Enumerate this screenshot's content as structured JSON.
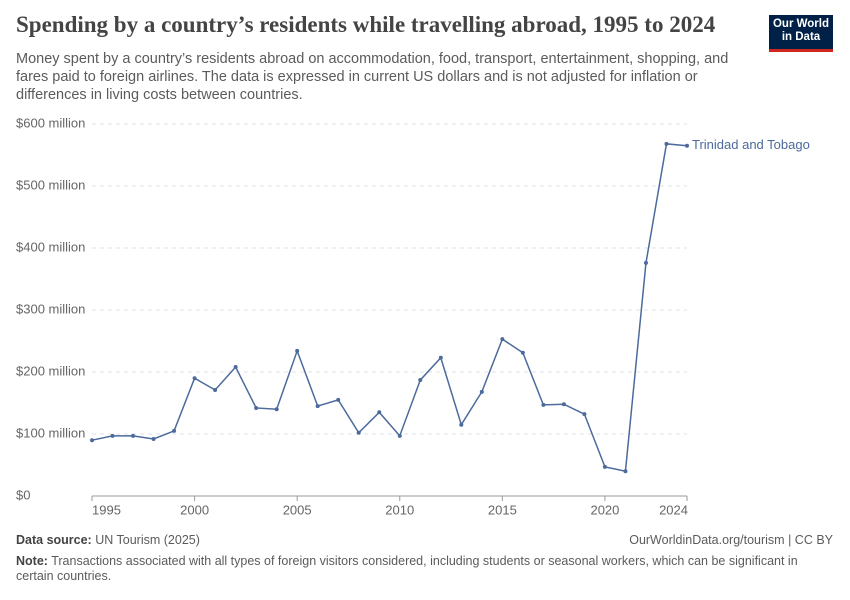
{
  "chart_data": {
    "type": "line",
    "title": "Spending by a country’s residents while travelling abroad, 1995 to 2024",
    "subtitle": "Money spent by a country’s residents abroad on accommodation, food, transport, entertainment, shopping, and fares paid to foreign airlines. The data is expressed in current US dollars and is not adjusted for inflation or differences in living costs between countries.",
    "logo": [
      "Our World",
      "in Data"
    ],
    "source_label": "Data source:",
    "source": "UN Tourism (2025)",
    "url": "OurWorldinData.org/tourism | CC BY",
    "note_label": "Note:",
    "note": "Transactions associated with all types of foreign visitors considered, including students or seasonal workers, which can be significant in certain countries.",
    "x": [
      1995,
      1996,
      1997,
      1998,
      1999,
      2000,
      2001,
      2002,
      2003,
      2004,
      2005,
      2006,
      2007,
      2008,
      2009,
      2010,
      2011,
      2012,
      2013,
      2014,
      2015,
      2016,
      2017,
      2018,
      2019,
      2020,
      2021,
      2022,
      2023,
      2024
    ],
    "series": [
      {
        "name": "Trinidad and Tobago",
        "color": "#4c6a9c",
        "values": [
          90,
          97,
          97,
          92,
          105,
          190,
          171,
          208,
          142,
          140,
          234,
          145,
          155,
          102,
          135,
          97,
          187,
          223,
          115,
          168,
          253,
          231,
          147,
          148,
          132,
          47,
          40,
          376,
          568,
          565
        ]
      }
    ],
    "xlim": [
      1995,
      2024
    ],
    "xticks": [
      1995,
      2000,
      2005,
      2010,
      2015,
      2020,
      2024
    ],
    "ylim": [
      0,
      600
    ],
    "yticks": [
      {
        "value": 0,
        "label": "$0"
      },
      {
        "value": 100,
        "label": "$100 million"
      },
      {
        "value": 200,
        "label": "$200 million"
      },
      {
        "value": 300,
        "label": "$300 million"
      },
      {
        "value": 400,
        "label": "$400 million"
      },
      {
        "value": 500,
        "label": "$500 million"
      },
      {
        "value": 600,
        "label": "$600 million"
      }
    ],
    "grid": true
  }
}
